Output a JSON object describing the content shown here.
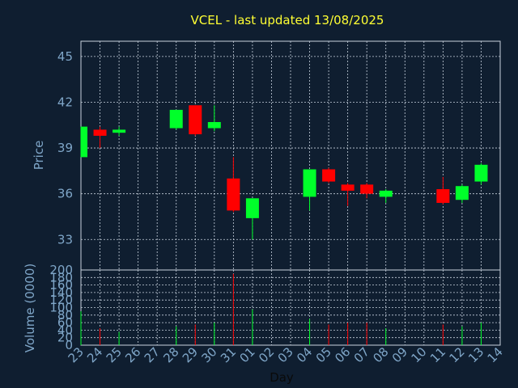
{
  "chart_data": {
    "type": "candlestick",
    "title": "VCEL - last updated 13/08/2025",
    "xlabel": "Day",
    "ylabel_price": "Price",
    "ylabel_volume": "Volume (0000)",
    "x_ticks": [
      "23",
      "24",
      "25",
      "26",
      "27",
      "28",
      "29",
      "30",
      "31",
      "01",
      "02",
      "03",
      "04",
      "05",
      "06",
      "07",
      "08",
      "09",
      "10",
      "11",
      "12",
      "13",
      "14"
    ],
    "price_ylim": [
      31,
      46
    ],
    "price_ticks": [
      33,
      36,
      39,
      42,
      45
    ],
    "volume_ylim": [
      0,
      200
    ],
    "volume_ticks": [
      0,
      20,
      40,
      60,
      80,
      100,
      120,
      140,
      160,
      180,
      200
    ],
    "colors": {
      "up": "#00ff2a",
      "down": "#ff0000",
      "title": "#ffff33",
      "axis_text": "#7fa6c8",
      "background": "#0f1e30",
      "grid": "#c8d2de"
    },
    "candles": [
      {
        "day": "23",
        "open": 38.4,
        "high": 40.4,
        "low": 38.4,
        "close": 40.4,
        "volume": 90
      },
      {
        "day": "24",
        "open": 40.2,
        "high": 40.4,
        "low": 39.0,
        "close": 39.8,
        "volume": 45
      },
      {
        "day": "25",
        "open": 40.0,
        "high": 40.4,
        "low": 39.8,
        "close": 40.2,
        "volume": 35
      },
      {
        "day": "28",
        "open": 40.3,
        "high": 41.5,
        "low": 40.2,
        "close": 41.5,
        "volume": 50
      },
      {
        "day": "29",
        "open": 41.8,
        "high": 41.8,
        "low": 39.8,
        "close": 39.9,
        "volume": 55
      },
      {
        "day": "30",
        "open": 40.3,
        "high": 41.8,
        "low": 40.1,
        "close": 40.7,
        "volume": 60
      },
      {
        "day": "31",
        "open": 37.0,
        "high": 38.4,
        "low": 34.8,
        "close": 34.9,
        "volume": 190
      },
      {
        "day": "01",
        "open": 34.4,
        "high": 35.7,
        "low": 33.0,
        "close": 35.7,
        "volume": 95
      },
      {
        "day": "04",
        "open": 35.8,
        "high": 37.6,
        "low": 34.9,
        "close": 37.6,
        "volume": 70
      },
      {
        "day": "05",
        "open": 37.6,
        "high": 37.7,
        "low": 36.7,
        "close": 36.8,
        "volume": 55
      },
      {
        "day": "06",
        "open": 36.6,
        "high": 36.7,
        "low": 35.2,
        "close": 36.2,
        "volume": 60
      },
      {
        "day": "07",
        "open": 36.6,
        "high": 36.7,
        "low": 35.7,
        "close": 36.0,
        "volume": 60
      },
      {
        "day": "08",
        "open": 35.8,
        "high": 36.3,
        "low": 35.4,
        "close": 36.2,
        "volume": 45
      },
      {
        "day": "11",
        "open": 36.3,
        "high": 37.1,
        "low": 35.3,
        "close": 35.4,
        "volume": 55
      },
      {
        "day": "12",
        "open": 35.6,
        "high": 36.6,
        "low": 35.4,
        "close": 36.5,
        "volume": 50
      },
      {
        "day": "13",
        "open": 36.8,
        "high": 38.0,
        "low": 36.6,
        "close": 37.9,
        "volume": 60
      }
    ]
  }
}
